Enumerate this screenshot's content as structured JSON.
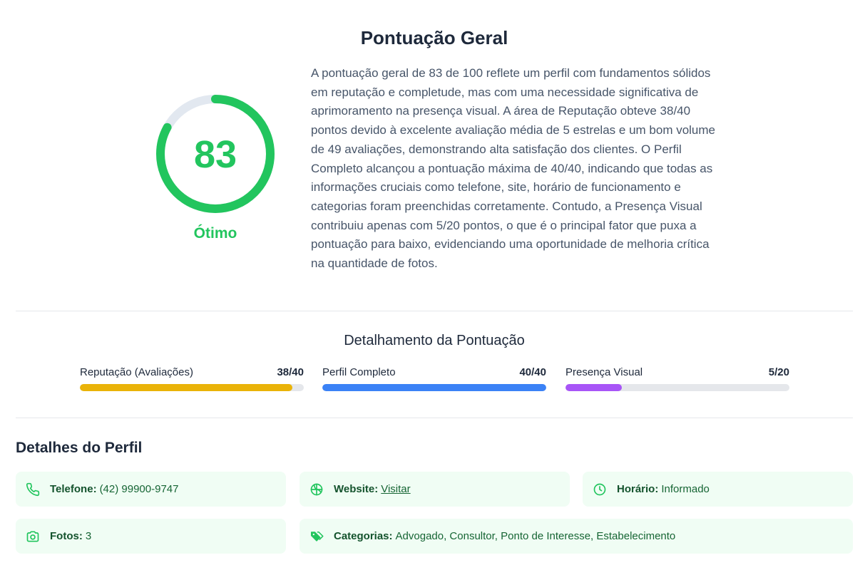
{
  "header": {
    "title": "Pontuação Geral"
  },
  "score": {
    "value": "83",
    "max": 100,
    "fraction": 0.83,
    "rating": "Ótimo",
    "color": "#22c55e",
    "track_color": "#e2e8f0"
  },
  "summary": "A pontuação geral de 83 de 100 reflete um perfil com fundamentos sólidos em reputação e completude, mas com uma necessidade significativa de aprimoramento na presença visual. A área de Reputação obteve 38/40 pontos devido à excelente avaliação média de 5 estrelas e um bom volume de 49 avaliações, demonstrando alta satisfação dos clientes. O Perfil Completo alcançou a pontuação máxima de 40/40, indicando que todas as informações cruciais como telefone, site, horário de funcionamento e categorias foram preenchidas corretamente. Contudo, a Presença Visual contribuiu apenas com 5/20 pontos, o que é o principal fator que puxa a pontuação para baixo, evidenciando uma oportunidade de melhoria crítica na quantidade de fotos.",
  "breakdown": {
    "title": "Detalhamento da Pontuação",
    "bars": [
      {
        "label": "Reputação (Avaliações)",
        "score": "38/40",
        "fraction": 0.95,
        "color": "#eab308"
      },
      {
        "label": "Perfil Completo",
        "score": "40/40",
        "fraction": 1.0,
        "color": "#3b82f6"
      },
      {
        "label": "Presença Visual",
        "score": "5/20",
        "fraction": 0.25,
        "color": "#a855f7"
      }
    ]
  },
  "profile": {
    "title": "Detalhes do Perfil",
    "icon_color": "#22c55e",
    "items": [
      {
        "icon": "phone-icon",
        "label": "Telefone:",
        "value": "(42) 99900-9747"
      },
      {
        "icon": "globe-icon",
        "label": "Website:",
        "value": "Visitar"
      },
      {
        "icon": "clock-icon",
        "label": "Horário:",
        "value": "Informado"
      },
      {
        "icon": "camera-icon",
        "label": "Fotos:",
        "value": "3"
      },
      {
        "icon": "tags-icon",
        "label": "Categorias:",
        "value": "Advogado, Consultor, Ponto de Interesse, Estabelecimento"
      }
    ]
  }
}
